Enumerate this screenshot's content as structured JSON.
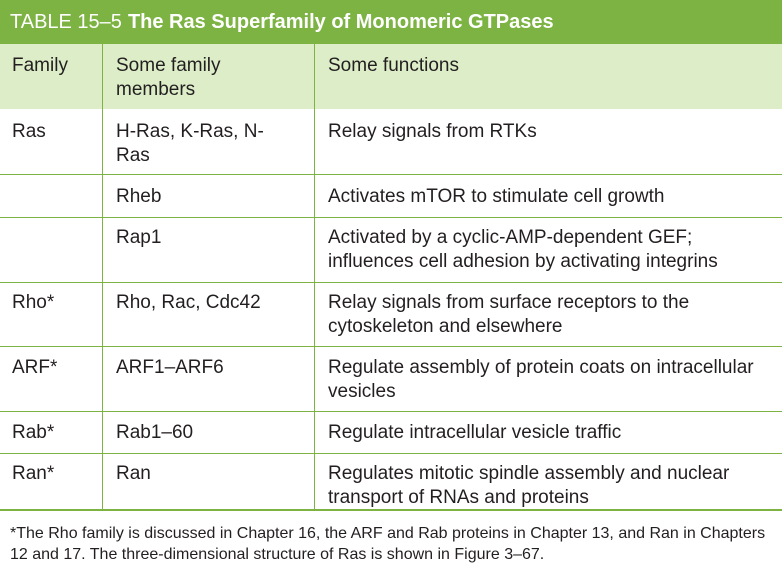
{
  "table": {
    "label": "TABLE 15–5",
    "caption": "The Ras Superfamily of Monomeric GTPases",
    "headers": [
      "Family",
      "Some family members",
      "Some functions"
    ],
    "rows": [
      {
        "family": "Ras",
        "members": "H-Ras, K-Ras, N-Ras",
        "functions": "Relay signals from RTKs"
      },
      {
        "family": "",
        "members": "Rheb",
        "functions": "Activates mTOR to stimulate cell growth"
      },
      {
        "family": "",
        "members": "Rap1",
        "functions": "Activated by a cyclic-AMP-dependent GEF; influences cell adhesion by activating integrins"
      },
      {
        "family": "Rho*",
        "members": "Rho, Rac, Cdc42",
        "functions": "Relay signals from surface receptors to the cytoskeleton and elsewhere"
      },
      {
        "family": "ARF*",
        "members": "ARF1–ARF6",
        "functions": "Regulate assembly of protein coats on intracellular vesicles"
      },
      {
        "family": "Rab*",
        "members": "Rab1–60",
        "functions": "Regulate intracellular vesicle traffic"
      },
      {
        "family": "Ran*",
        "members": "Ran",
        "functions": "Regulates mitotic spindle assembly and nuclear transport of RNAs and proteins"
      }
    ],
    "footnote": "*The Rho family is discussed in Chapter 16, the ARF and Rab proteins in Chapter 13, and Ran in Chapters 12 and 17. The three-dimensional structure of Ras is shown in Figure 3–67."
  }
}
